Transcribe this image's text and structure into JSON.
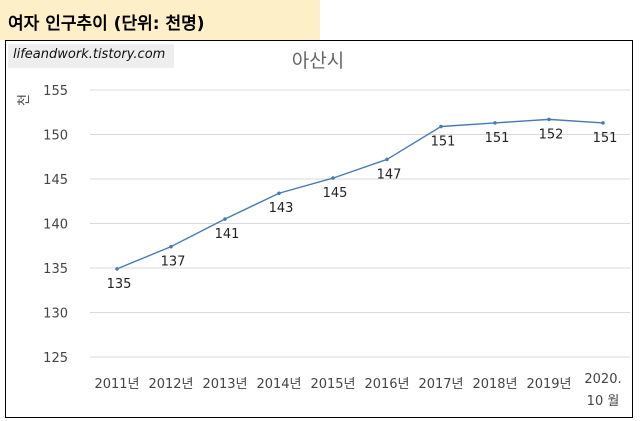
{
  "header": {
    "title": "여자 인구추이 (단위: 천명)"
  },
  "watermark": {
    "text": "lifeandwork.tistory.com"
  },
  "chart_data": {
    "type": "line",
    "title": "아산시",
    "ylabel": "천",
    "xlabel": "",
    "categories": [
      "2011년",
      "2012년",
      "2013년",
      "2014년",
      "2015년",
      "2016년",
      "2017년",
      "2018년",
      "2019년",
      "2020.\n10 월"
    ],
    "series": [
      {
        "values": [
          134.9,
          137.4,
          140.5,
          143.4,
          145.1,
          147.2,
          150.9,
          151.3,
          151.7,
          151.3
        ],
        "data_labels": [
          "135",
          "137",
          "141",
          "143",
          "145",
          "147",
          "151",
          "151",
          "152",
          "151"
        ]
      }
    ],
    "ylim": [
      125,
      155
    ],
    "yticks": [
      125,
      130,
      135,
      140,
      145,
      150,
      155
    ],
    "grid": true,
    "line_color": "#4a7ab5",
    "grid_color": "#d9d9d9"
  }
}
